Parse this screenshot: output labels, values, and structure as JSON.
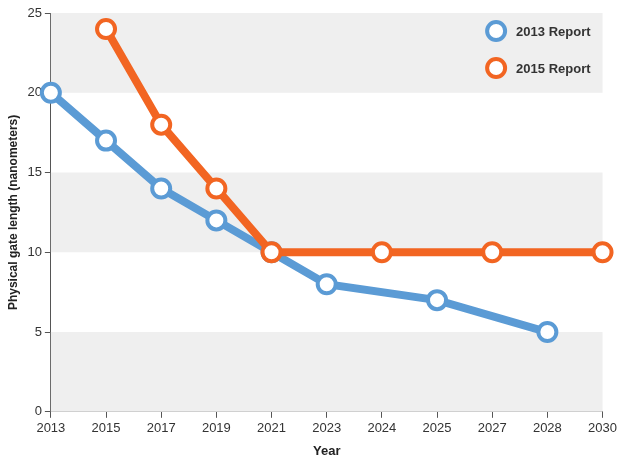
{
  "chart_data": {
    "type": "line",
    "x_label": "Year",
    "y_label": "Physical gate length (nanometers)",
    "categories": [
      "2013",
      "2015",
      "2017",
      "2019",
      "2021",
      "2023",
      "2024",
      "2025",
      "2027",
      "2028",
      "2030"
    ],
    "series": [
      {
        "name": "2013 Report",
        "color": "#5b9bd5",
        "marker": "circle",
        "values": [
          20,
          17,
          14,
          12,
          10,
          8,
          null,
          7,
          null,
          5,
          null
        ]
      },
      {
        "name": "2015 Report",
        "color": "#f26522",
        "marker": "circle",
        "values": [
          null,
          24,
          18,
          14,
          10,
          null,
          10,
          null,
          10,
          null,
          10
        ]
      }
    ],
    "ylim": [
      0,
      25
    ],
    "yticks": [
      0,
      5,
      10,
      15,
      20,
      25
    ],
    "grid": true,
    "legend": "top-right"
  }
}
